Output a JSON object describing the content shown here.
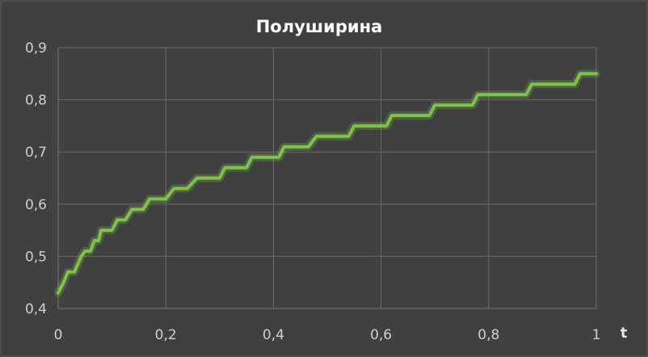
{
  "chart_data": {
    "type": "line",
    "title": "Полуширина",
    "xlabel": "t",
    "ylabel": "",
    "xlim": [
      0,
      1
    ],
    "ylim": [
      0.4,
      0.9
    ],
    "x_ticks": [
      "0",
      "0,2",
      "0,4",
      "0,6",
      "0,8",
      "1"
    ],
    "y_ticks": [
      "0,4",
      "0,5",
      "0,6",
      "0,7",
      "0,8",
      "0,9"
    ],
    "grid": true,
    "series": [
      {
        "color": "#7fc24a",
        "x": [
          0,
          0.01,
          0.018,
          0.03,
          0.043,
          0.05,
          0.06,
          0.067,
          0.075,
          0.08,
          0.09,
          0.1,
          0.11,
          0.115,
          0.125,
          0.137,
          0.15,
          0.158,
          0.17,
          0.178,
          0.19,
          0.2,
          0.215,
          0.225,
          0.24,
          0.258,
          0.27,
          0.28,
          0.3,
          0.31,
          0.33,
          0.35,
          0.36,
          0.39,
          0.41,
          0.42,
          0.44,
          0.465,
          0.48,
          0.52,
          0.54,
          0.55,
          0.6,
          0.61,
          0.62,
          0.68,
          0.69,
          0.7,
          0.76,
          0.77,
          0.78,
          0.86,
          0.87,
          0.88,
          0.95,
          0.96,
          0.97,
          1.0
        ],
        "y": [
          0.43,
          0.45,
          0.47,
          0.47,
          0.5,
          0.51,
          0.51,
          0.53,
          0.53,
          0.55,
          0.55,
          0.55,
          0.57,
          0.57,
          0.57,
          0.59,
          0.59,
          0.59,
          0.61,
          0.61,
          0.61,
          0.61,
          0.63,
          0.63,
          0.63,
          0.65,
          0.65,
          0.65,
          0.65,
          0.67,
          0.67,
          0.67,
          0.69,
          0.69,
          0.69,
          0.71,
          0.71,
          0.71,
          0.73,
          0.73,
          0.73,
          0.75,
          0.75,
          0.75,
          0.77,
          0.77,
          0.77,
          0.79,
          0.79,
          0.79,
          0.81,
          0.81,
          0.81,
          0.83,
          0.83,
          0.83,
          0.85,
          0.85
        ]
      }
    ]
  }
}
